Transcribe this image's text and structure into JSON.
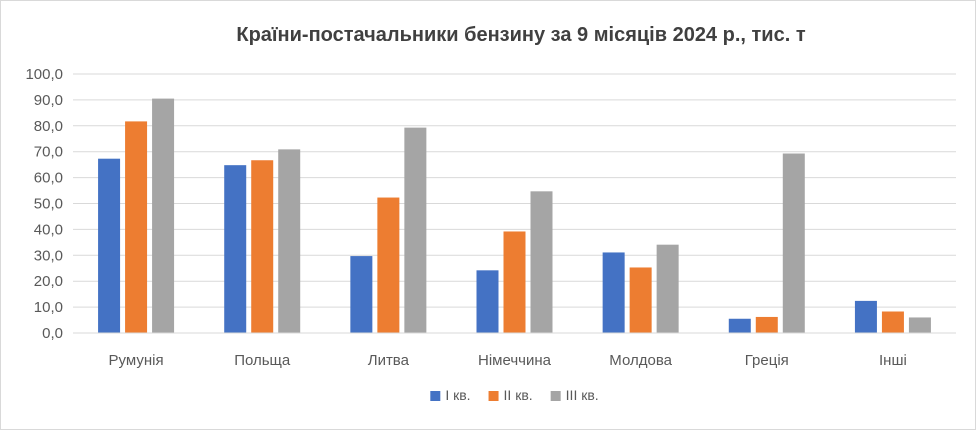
{
  "chart_data": {
    "type": "bar",
    "title": "Країни-постачальники бензину за 9 місяців 2024 р., тис. т",
    "xlabel": "",
    "ylabel": "",
    "ylim": [
      0,
      100
    ],
    "yticks": [
      "0,0",
      "10,0",
      "20,0",
      "30,0",
      "40,0",
      "50,0",
      "60,0",
      "70,0",
      "80,0",
      "90,0",
      "100,0"
    ],
    "grid": true,
    "legend_position": "bottom",
    "categories": [
      "Румунія",
      "Польща",
      "Литва",
      "Німеччина",
      "Молдова",
      "Греція",
      "Інші"
    ],
    "series": [
      {
        "name": "I кв.",
        "color": "#4472C4",
        "values": [
          67.3,
          64.8,
          29.7,
          24.2,
          31.1,
          5.5,
          12.4
        ]
      },
      {
        "name": "II кв.",
        "color": "#ED7D31",
        "values": [
          81.7,
          66.7,
          52.3,
          39.2,
          25.3,
          6.2,
          8.3
        ]
      },
      {
        "name": "III кв.",
        "color": "#A5A5A5",
        "values": [
          90.5,
          70.9,
          79.3,
          54.7,
          34.1,
          69.3,
          6.0
        ]
      }
    ]
  }
}
